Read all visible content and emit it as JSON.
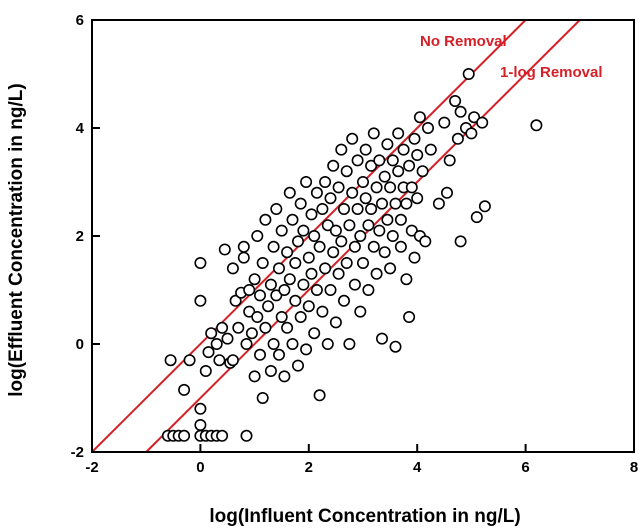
{
  "chart_data": {
    "type": "scatter",
    "xlabel": "log(Influent Concentration in ng/L)",
    "ylabel": "log(Effluent Concentration in ng/L)",
    "xlim": [
      -2,
      8
    ],
    "ylim": [
      -2,
      6
    ],
    "xticks": [
      -2,
      0,
      2,
      4,
      6,
      8
    ],
    "yticks": [
      -2,
      0,
      2,
      4,
      6
    ],
    "x_tick_labels": [
      "-2",
      "0",
      "2",
      "4",
      "6",
      "8"
    ],
    "y_tick_labels": [
      "-2",
      "0",
      "2",
      "4",
      "6"
    ],
    "grid": false,
    "reference_lines": [
      {
        "label": "No Removal",
        "intercept": 0,
        "slope": 1,
        "color": "#d62027"
      },
      {
        "label": "1-log Removal",
        "intercept": -1,
        "slope": 1,
        "color": "#d62027"
      }
    ],
    "marker": {
      "shape": "open-circle",
      "stroke": "#000000",
      "fill": "#ffffff"
    },
    "points": [
      [
        -0.6,
        -1.7
      ],
      [
        -0.5,
        -1.7
      ],
      [
        -0.4,
        -1.7
      ],
      [
        -0.3,
        -1.7
      ],
      [
        -0.55,
        -0.3
      ],
      [
        -0.2,
        -0.3
      ],
      [
        0.0,
        -1.2
      ],
      [
        0.0,
        -1.5
      ],
      [
        0.0,
        -1.7
      ],
      [
        0.1,
        -1.7
      ],
      [
        0.2,
        -1.7
      ],
      [
        0.3,
        -1.7
      ],
      [
        0.4,
        -1.7
      ],
      [
        0.85,
        -1.7
      ],
      [
        -0.3,
        -0.85
      ],
      [
        0.0,
        0.8
      ],
      [
        0.0,
        1.5
      ],
      [
        0.1,
        -0.5
      ],
      [
        0.15,
        -0.15
      ],
      [
        0.2,
        0.2
      ],
      [
        0.3,
        0.0
      ],
      [
        0.35,
        -0.3
      ],
      [
        0.4,
        0.3
      ],
      [
        0.45,
        1.75
      ],
      [
        0.5,
        0.1
      ],
      [
        0.55,
        -0.35
      ],
      [
        0.6,
        1.4
      ],
      [
        0.6,
        -0.3
      ],
      [
        0.65,
        0.8
      ],
      [
        0.7,
        0.3
      ],
      [
        0.75,
        0.95
      ],
      [
        0.8,
        1.8
      ],
      [
        0.8,
        1.6
      ],
      [
        0.85,
        0.0
      ],
      [
        0.9,
        1.0
      ],
      [
        0.9,
        0.6
      ],
      [
        0.95,
        0.2
      ],
      [
        1.0,
        -0.6
      ],
      [
        1.0,
        1.2
      ],
      [
        1.05,
        2.0
      ],
      [
        1.05,
        0.5
      ],
      [
        1.1,
        0.9
      ],
      [
        1.1,
        -0.2
      ],
      [
        1.15,
        -1.0
      ],
      [
        1.15,
        1.5
      ],
      [
        1.2,
        0.3
      ],
      [
        1.2,
        2.3
      ],
      [
        1.25,
        0.7
      ],
      [
        1.3,
        1.1
      ],
      [
        1.3,
        -0.5
      ],
      [
        1.35,
        1.8
      ],
      [
        1.35,
        0.0
      ],
      [
        1.4,
        2.5
      ],
      [
        1.4,
        0.9
      ],
      [
        1.45,
        1.4
      ],
      [
        1.45,
        -0.2
      ],
      [
        1.5,
        0.5
      ],
      [
        1.5,
        2.1
      ],
      [
        1.55,
        1.0
      ],
      [
        1.55,
        -0.6
      ],
      [
        1.6,
        1.7
      ],
      [
        1.6,
        0.3
      ],
      [
        1.65,
        2.8
      ],
      [
        1.65,
        1.2
      ],
      [
        1.7,
        0.0
      ],
      [
        1.7,
        2.3
      ],
      [
        1.75,
        0.8
      ],
      [
        1.75,
        1.5
      ],
      [
        1.8,
        -0.4
      ],
      [
        1.8,
        1.9
      ],
      [
        1.85,
        2.6
      ],
      [
        1.85,
        0.5
      ],
      [
        1.9,
        1.1
      ],
      [
        1.9,
        2.1
      ],
      [
        1.95,
        3.0
      ],
      [
        1.95,
        -0.1
      ],
      [
        2.0,
        1.6
      ],
      [
        2.0,
        0.7
      ],
      [
        2.05,
        2.4
      ],
      [
        2.05,
        1.3
      ],
      [
        2.1,
        0.2
      ],
      [
        2.1,
        2.0
      ],
      [
        2.15,
        2.8
      ],
      [
        2.15,
        1.0
      ],
      [
        2.2,
        -0.95
      ],
      [
        2.2,
        1.8
      ],
      [
        2.25,
        2.5
      ],
      [
        2.25,
        0.6
      ],
      [
        2.3,
        1.4
      ],
      [
        2.3,
        3.0
      ],
      [
        2.35,
        2.2
      ],
      [
        2.35,
        0.0
      ],
      [
        2.4,
        1.0
      ],
      [
        2.4,
        2.7
      ],
      [
        2.45,
        1.7
      ],
      [
        2.45,
        3.3
      ],
      [
        2.5,
        0.4
      ],
      [
        2.5,
        2.1
      ],
      [
        2.55,
        2.9
      ],
      [
        2.55,
        1.3
      ],
      [
        2.6,
        3.6
      ],
      [
        2.6,
        1.9
      ],
      [
        2.65,
        0.8
      ],
      [
        2.65,
        2.5
      ],
      [
        2.7,
        3.2
      ],
      [
        2.7,
        1.5
      ],
      [
        2.75,
        0.0
      ],
      [
        2.75,
        2.2
      ],
      [
        2.8,
        3.8
      ],
      [
        2.8,
        2.8
      ],
      [
        2.85,
        1.1
      ],
      [
        2.85,
        1.8
      ],
      [
        2.9,
        2.5
      ],
      [
        2.9,
        3.4
      ],
      [
        2.95,
        0.6
      ],
      [
        2.95,
        2.0
      ],
      [
        3.0,
        3.0
      ],
      [
        3.0,
        1.5
      ],
      [
        3.05,
        2.7
      ],
      [
        3.05,
        3.6
      ],
      [
        3.1,
        2.2
      ],
      [
        3.1,
        1.0
      ],
      [
        3.15,
        3.3
      ],
      [
        3.15,
        2.5
      ],
      [
        3.2,
        1.8
      ],
      [
        3.2,
        3.9
      ],
      [
        3.25,
        2.9
      ],
      [
        3.25,
        1.3
      ],
      [
        3.3,
        2.1
      ],
      [
        3.3,
        3.4
      ],
      [
        3.35,
        0.1
      ],
      [
        3.35,
        2.6
      ],
      [
        3.4,
        3.1
      ],
      [
        3.4,
        1.7
      ],
      [
        3.45,
        3.7
      ],
      [
        3.45,
        2.3
      ],
      [
        3.5,
        2.9
      ],
      [
        3.5,
        1.4
      ],
      [
        3.55,
        3.4
      ],
      [
        3.55,
        2.0
      ],
      [
        3.6,
        2.6
      ],
      [
        3.6,
        -0.05
      ],
      [
        3.65,
        3.2
      ],
      [
        3.65,
        3.9
      ],
      [
        3.7,
        2.3
      ],
      [
        3.7,
        1.8
      ],
      [
        3.75,
        2.9
      ],
      [
        3.75,
        3.6
      ],
      [
        3.8,
        2.6
      ],
      [
        3.8,
        1.2
      ],
      [
        3.85,
        3.3
      ],
      [
        3.85,
        0.5
      ],
      [
        3.9,
        2.9
      ],
      [
        3.9,
        2.1
      ],
      [
        3.95,
        3.8
      ],
      [
        3.95,
        1.6
      ],
      [
        4.0,
        2.7
      ],
      [
        4.0,
        3.5
      ],
      [
        4.05,
        2.0
      ],
      [
        4.05,
        4.2
      ],
      [
        4.1,
        3.2
      ],
      [
        4.15,
        1.9
      ],
      [
        4.2,
        4.0
      ],
      [
        4.25,
        3.6
      ],
      [
        4.4,
        2.6
      ],
      [
        4.5,
        4.1
      ],
      [
        4.55,
        2.8
      ],
      [
        4.6,
        3.4
      ],
      [
        4.7,
        4.5
      ],
      [
        4.75,
        3.8
      ],
      [
        4.8,
        4.3
      ],
      [
        4.8,
        1.9
      ],
      [
        4.9,
        4.0
      ],
      [
        4.95,
        5.0
      ],
      [
        5.0,
        3.9
      ],
      [
        5.05,
        4.2
      ],
      [
        5.1,
        2.35
      ],
      [
        5.2,
        4.1
      ],
      [
        5.25,
        2.55
      ],
      [
        6.2,
        4.05
      ]
    ]
  }
}
